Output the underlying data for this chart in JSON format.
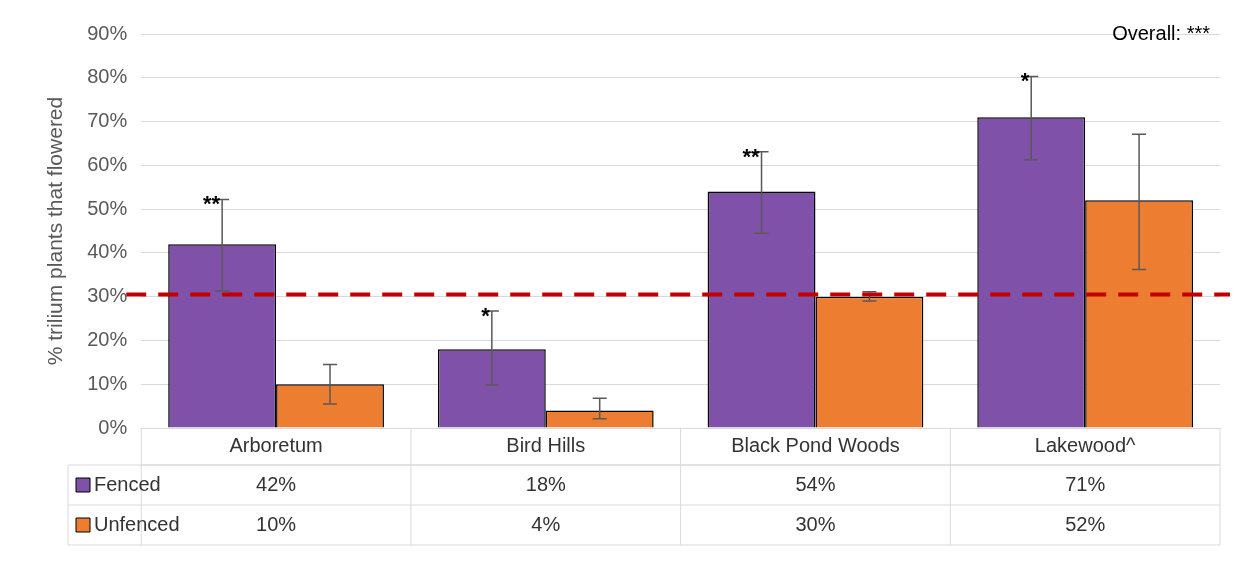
{
  "chart_data": {
    "type": "bar",
    "ylabel": "% trilium plants that flowered",
    "categories": [
      "Arboretum",
      "Bird Hills",
      "Black Pond Woods",
      "Lakewood^"
    ],
    "series": [
      {
        "name": "Fenced",
        "color": "#7f51a9",
        "values": [
          42,
          18,
          54,
          71
        ],
        "value_labels": [
          "42%",
          "18%",
          "54%",
          "71%"
        ],
        "errors": [
          [
            31.3,
            52.2
          ],
          [
            9.8,
            26.7
          ],
          [
            44.5,
            63.1
          ],
          [
            61.3,
            80.3
          ]
        ]
      },
      {
        "name": "Unfenced",
        "color": "#ed7d31",
        "values": [
          10,
          4,
          30,
          52
        ],
        "value_labels": [
          "10%",
          "4%",
          "30%",
          "52%"
        ],
        "errors": [
          [
            5.5,
            14.5
          ],
          [
            2.1,
            6.8
          ],
          [
            29.0,
            31.1
          ],
          [
            36.2,
            67.1
          ]
        ]
      }
    ],
    "ylim": [
      0,
      90
    ],
    "yticks": [
      {
        "value": 0,
        "label": "0%"
      },
      {
        "value": 10,
        "label": "10%"
      },
      {
        "value": 20,
        "label": "20%"
      },
      {
        "value": 30,
        "label": "30%"
      },
      {
        "value": 40,
        "label": "40%"
      },
      {
        "value": 50,
        "label": "50%"
      },
      {
        "value": 60,
        "label": "60%"
      },
      {
        "value": 70,
        "label": "70%"
      },
      {
        "value": 80,
        "label": "80%"
      },
      {
        "value": 90,
        "label": "90%"
      }
    ],
    "ref_lines": [
      {
        "axis": "y",
        "value": 30.5,
        "color": "#c00000",
        "line_style": "dashed"
      }
    ],
    "annotations": [
      "**",
      "*",
      "**",
      "*",
      "Overall: ***"
    ],
    "grid": true,
    "legend": "bottom"
  }
}
